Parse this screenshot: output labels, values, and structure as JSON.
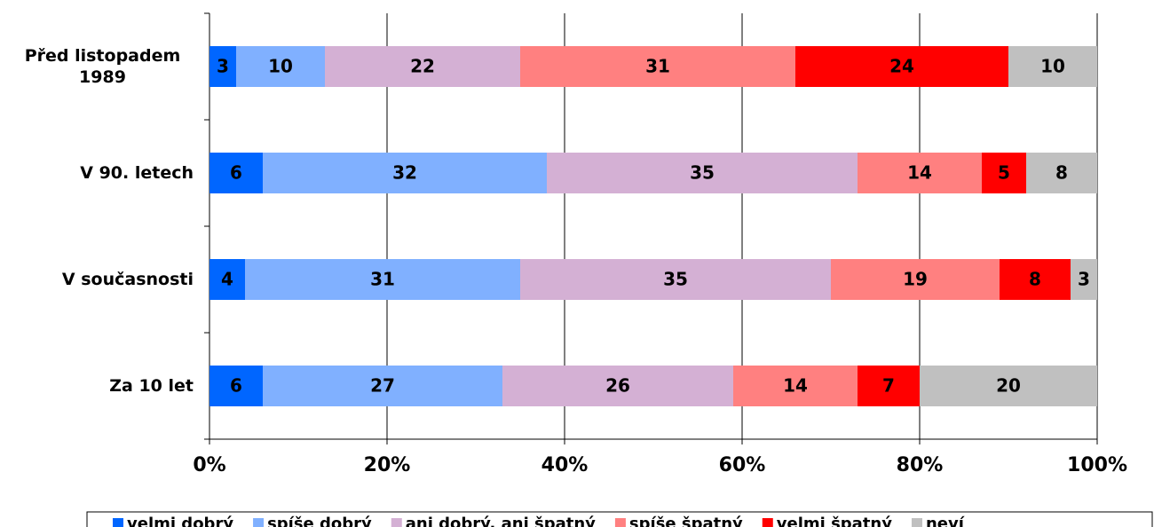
{
  "chart_data": {
    "type": "stacked-bar-horizontal",
    "categories": [
      "Před listopadem 1989",
      "V 90. letech",
      "V současnosti",
      "Za 10 let"
    ],
    "series": [
      {
        "name": "velmi dobrý",
        "color": "#0066ff",
        "values": [
          3,
          6,
          4,
          6
        ]
      },
      {
        "name": "spíše dobrý",
        "color": "#80b0ff",
        "values": [
          10,
          32,
          31,
          27
        ]
      },
      {
        "name": "ani dobrý, ani špatný",
        "color": "#d4b0d4",
        "values": [
          22,
          35,
          35,
          26
        ]
      },
      {
        "name": "spíše špatný",
        "color": "#ff8080",
        "values": [
          31,
          14,
          19,
          14
        ]
      },
      {
        "name": "velmi špatný",
        "color": "#ff0000",
        "values": [
          24,
          5,
          8,
          7
        ]
      },
      {
        "name": "neví",
        "color": "#c0c0c0",
        "values": [
          10,
          8,
          3,
          20
        ]
      }
    ],
    "xlim": [
      0,
      100
    ],
    "xticks": [
      {
        "value": 0,
        "label": "0%"
      },
      {
        "value": 20,
        "label": "20%"
      },
      {
        "value": 40,
        "label": "40%"
      },
      {
        "value": 60,
        "label": "60%"
      },
      {
        "value": 80,
        "label": "80%"
      },
      {
        "value": 100,
        "label": "100%"
      }
    ],
    "grid": true,
    "legend": "bottom"
  }
}
